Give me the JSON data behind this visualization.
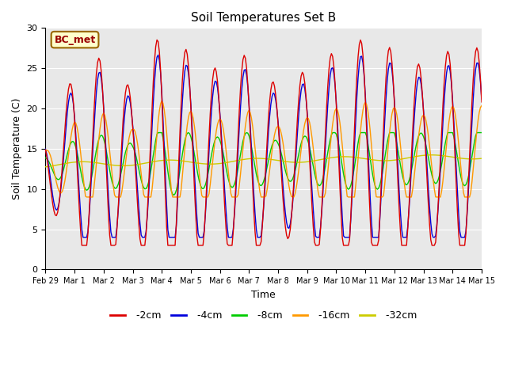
{
  "title": "Soil Temperatures Set B",
  "xlabel": "Time",
  "ylabel": "Soil Temperature (C)",
  "annotation": "BC_met",
  "ylim": [
    0,
    30
  ],
  "fig_bg": "#ffffff",
  "plot_bg": "#e8e8e8",
  "series_colors": {
    "-2cm": "#dd0000",
    "-4cm": "#0000dd",
    "-8cm": "#00cc00",
    "-16cm": "#ff9900",
    "-32cm": "#cccc00"
  },
  "x_tick_labels": [
    "Feb 29",
    "Mar 1",
    "Mar 2",
    "Mar 3",
    "Mar 4",
    "Mar 5",
    "Mar 6",
    "Mar 7",
    "Mar 8",
    "Mar 9",
    "Mar 10",
    "Mar 11",
    "Mar 12",
    "Mar 13",
    "Mar 14",
    "Mar 15"
  ],
  "yticks": [
    0,
    5,
    10,
    15,
    20,
    25,
    30
  ]
}
